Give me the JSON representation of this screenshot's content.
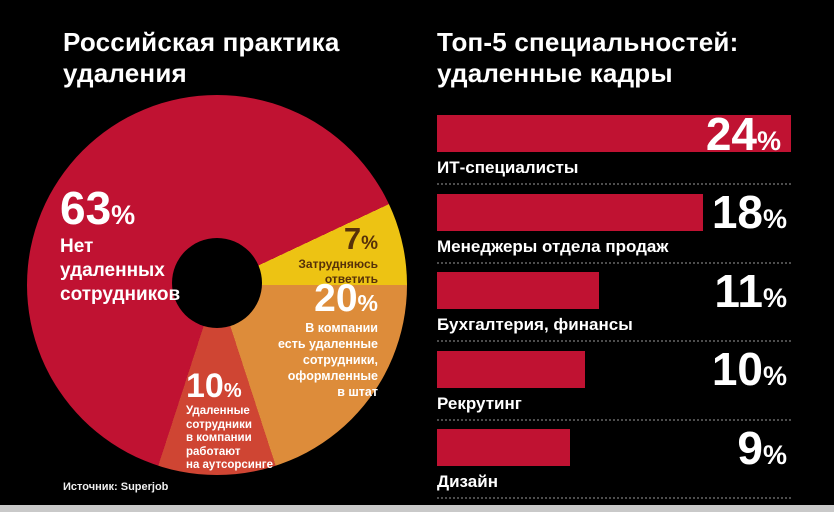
{
  "colors": {
    "background": "#000000",
    "crimson": "#c01232",
    "yellow": "#edc313",
    "orange": "#dd8c3a",
    "light_red": "#cf4533",
    "text_on_yellow": "#563109",
    "text_light": "#ffffff",
    "divider": "#4d4d4d",
    "footer_strip": "#c9c9c9"
  },
  "percent_sign": "%",
  "left": {
    "title_line1": "Российская практика",
    "title_line2": "удаления",
    "source": "Источник: Superjob"
  },
  "right": {
    "title_line1": "Топ-5 специальностей:",
    "title_line2": "удаленные кадры"
  },
  "chart_data": [
    {
      "type": "pie",
      "style": "donut",
      "title": "Российская практика удаления",
      "source": "Источник: Superjob",
      "segments": [
        {
          "label": "Нет удаленных сотрудников",
          "value": 63,
          "pct": "63",
          "color": "#c01232",
          "text_color": "#ffffff",
          "lines": [
            "Нет",
            "удаленных",
            "сотрудников"
          ]
        },
        {
          "label": "Затрудняюсь ответить",
          "value": 7,
          "pct": "7",
          "color": "#edc313",
          "text_color": "#563109",
          "lines": [
            "Затрудняюсь",
            "ответить"
          ]
        },
        {
          "label": "В компании есть удаленные сотрудники, оформленные в штат",
          "value": 20,
          "pct": "20",
          "color": "#dd8c3a",
          "text_color": "#ffffff",
          "lines": [
            "В компании",
            "есть удаленные",
            "сотрудники,",
            "оформленные",
            "в штат"
          ]
        },
        {
          "label": "Удаленные сотрудники в компании работают на аутсорсинге",
          "value": 10,
          "pct": "10",
          "color": "#cf4533",
          "text_color": "#ffffff",
          "lines": [
            "Удаленные",
            "сотрудники",
            "в компании",
            "работают",
            "на аутсорсинге"
          ]
        }
      ]
    },
    {
      "type": "bar",
      "orientation": "horizontal",
      "title": "Топ-5 специальностей: удаленные кадры",
      "categories": [
        "ИТ-специалисты",
        "Менеджеры отдела продаж",
        "Бухгалтерия, финансы",
        "Рекрутинг",
        "Дизайн"
      ],
      "values": [
        24,
        18,
        11,
        10,
        9
      ],
      "value_labels": [
        "24",
        "18",
        "11",
        "10",
        "9"
      ],
      "bar_color": "#c01232"
    }
  ]
}
